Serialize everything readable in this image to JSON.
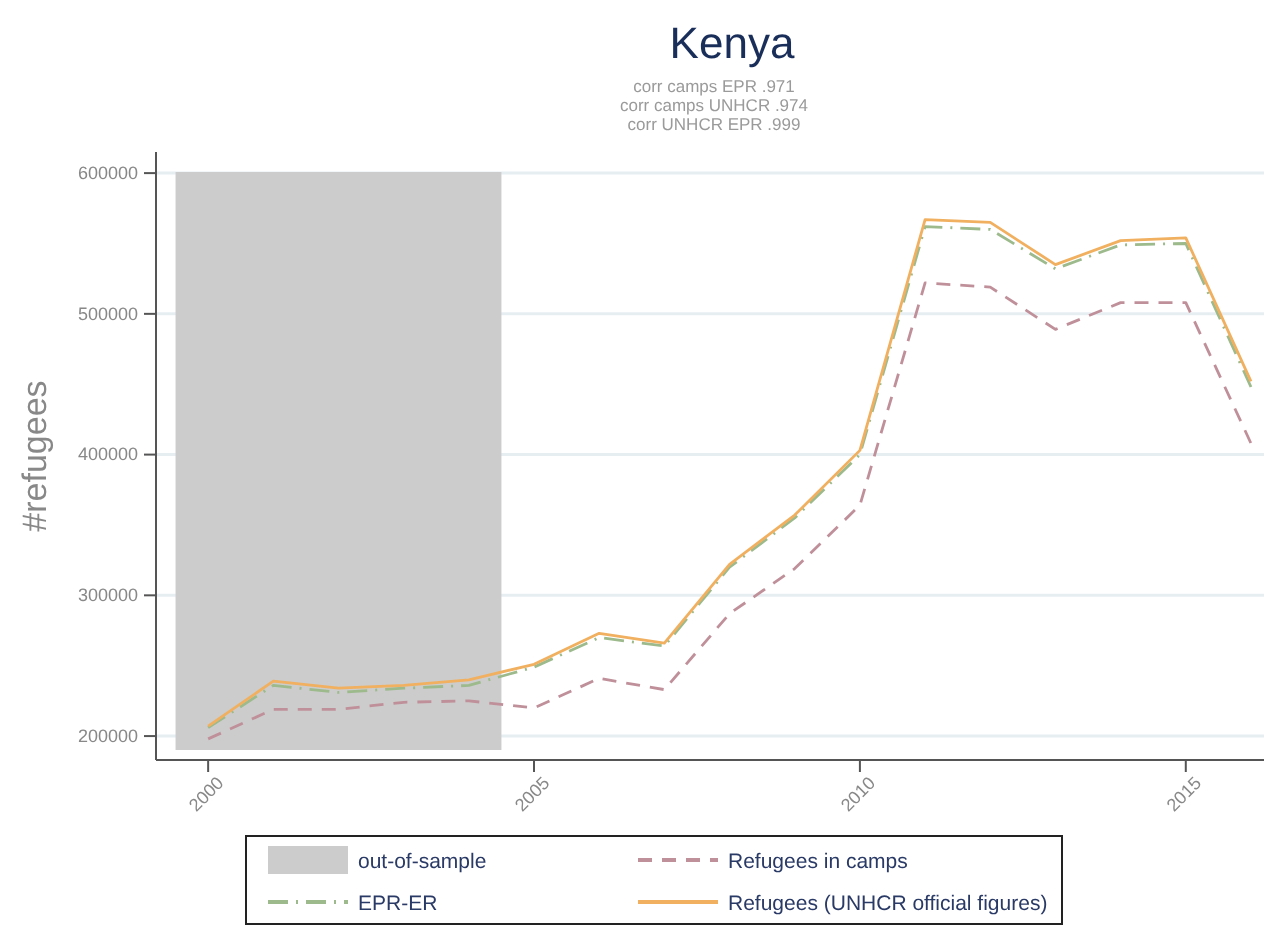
{
  "chart_data": {
    "type": "line",
    "title": "Kenya",
    "annotations": [
      "corr camps EPR  .971",
      "corr camps UNHCR  .974",
      "corr UNHCR EPR  .999"
    ],
    "ylabel": "#refugees",
    "x": [
      2000,
      2001,
      2002,
      2003,
      2004,
      2005,
      2006,
      2007,
      2008,
      2009,
      2010,
      2011,
      2012,
      2013,
      2014,
      2015,
      2016
    ],
    "xlim": [
      1999.2,
      2016.2
    ],
    "xticks": [
      2000,
      2005,
      2010,
      2015
    ],
    "ylim": [
      183000,
      615000
    ],
    "yticks": [
      200000,
      300000,
      400000,
      500000,
      600000
    ],
    "grid": "y",
    "legend": "bottom",
    "bands": [
      {
        "axis": "x",
        "from": 1999.5,
        "to": 2004.5,
        "label": "out-of-sample",
        "color": "#cccccc"
      }
    ],
    "series": [
      {
        "name": "Refugees in camps",
        "color": "#c0909a",
        "line_style": "dashed",
        "values": [
          198000,
          219000,
          219000,
          224000,
          225000,
          220000,
          241000,
          233000,
          287000,
          319000,
          364000,
          522000,
          519000,
          489000,
          508000,
          508000,
          408000
        ]
      },
      {
        "name": "EPR-ER",
        "color": "#9cba8c",
        "line_style": "dashdot",
        "values": [
          206000,
          236000,
          231000,
          234000,
          236000,
          249000,
          270000,
          264000,
          320000,
          355000,
          400000,
          562000,
          560000,
          532000,
          549000,
          550000,
          448000
        ]
      },
      {
        "name": "Refugees (UNHCR official figures)",
        "color": "#f0b060",
        "line_style": "solid",
        "values": [
          207000,
          239000,
          234000,
          236000,
          240000,
          251000,
          273000,
          266000,
          322000,
          357000,
          403000,
          567000,
          565000,
          535000,
          552000,
          554000,
          452000
        ]
      }
    ]
  }
}
